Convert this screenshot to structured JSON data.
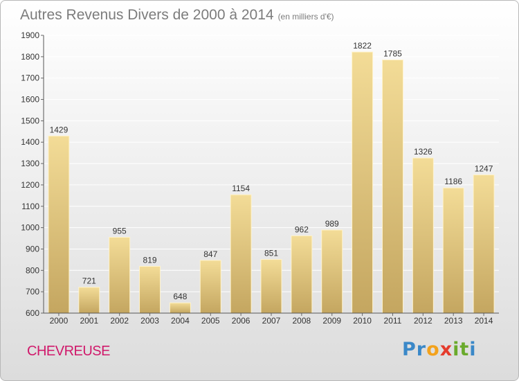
{
  "header": {
    "title": "Autres Revenus Divers de 2000 à 2014",
    "unit": "(en milliers d'€)"
  },
  "location": "CHEVREUSE",
  "brand": {
    "letters": [
      "P",
      "r",
      "o",
      "x",
      "i",
      "t",
      "i"
    ],
    "colors": [
      "#3a88c8",
      "#3a88c8",
      "#f3a21c",
      "#e53b2c",
      "#6aaa2c",
      "#6aaa2c",
      "#3a88c8"
    ]
  },
  "chart_data": {
    "type": "bar",
    "title": "Autres Revenus Divers de 2000 à 2014",
    "subtitle": "(en milliers d'€)",
    "categories": [
      "2000",
      "2001",
      "2002",
      "2003",
      "2004",
      "2005",
      "2006",
      "2007",
      "2008",
      "2009",
      "2010",
      "2011",
      "2012",
      "2013",
      "2014"
    ],
    "values": [
      1429,
      721,
      955,
      819,
      648,
      847,
      1154,
      851,
      962,
      989,
      1822,
      1785,
      1326,
      1186,
      1247
    ],
    "ylim": [
      600,
      1900
    ],
    "yticks": [
      600,
      700,
      800,
      900,
      1000,
      1100,
      1200,
      1300,
      1400,
      1500,
      1600,
      1700,
      1800,
      1900
    ],
    "grid": true,
    "bar_color": "#e8c878",
    "data_labels": true
  }
}
